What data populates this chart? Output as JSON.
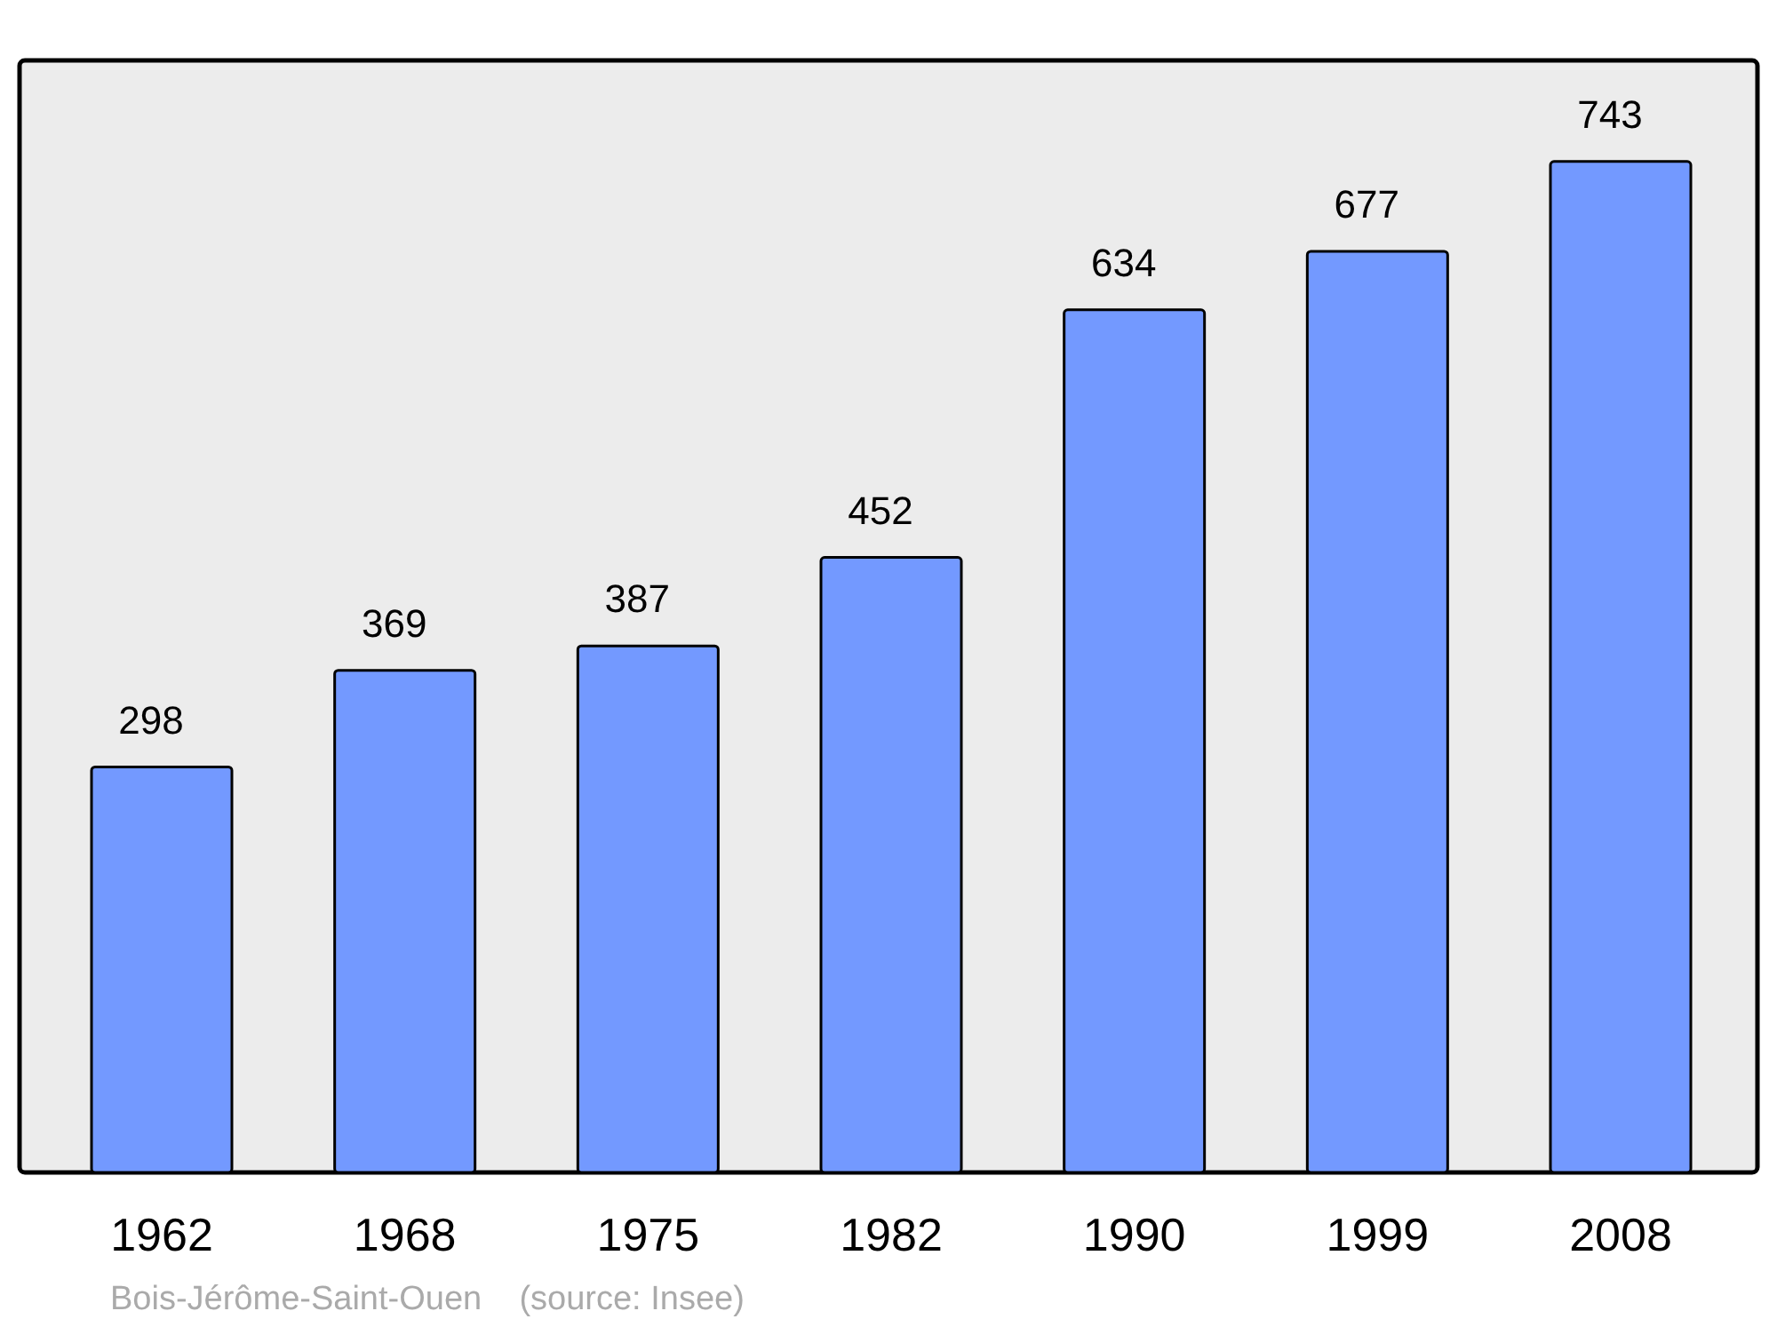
{
  "chart_data": {
    "type": "bar",
    "categories": [
      "1962",
      "1968",
      "1975",
      "1982",
      "1990",
      "1999",
      "2008"
    ],
    "values": [
      298,
      369,
      387,
      452,
      634,
      677,
      743
    ],
    "color": "#7399ff",
    "data_labels": true,
    "annotations": [
      "Bois-Jérôme-Saint-Ouen    (source: Insee)"
    ]
  }
}
